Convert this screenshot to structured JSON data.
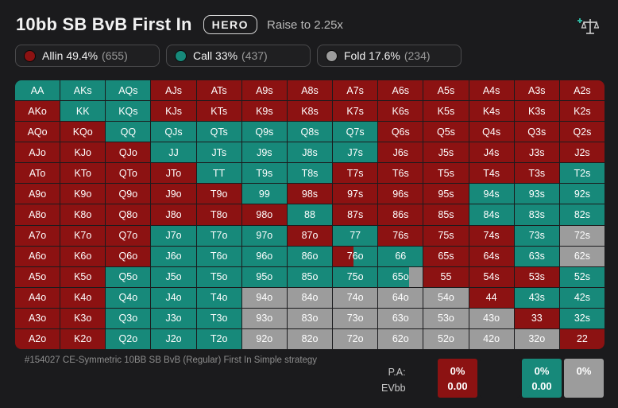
{
  "header": {
    "title": "10bb SB BvB First In",
    "badge": "HERO",
    "subtitle": "Raise to 2.25x"
  },
  "colors": {
    "allin": "#8c1212",
    "call": "#17897a",
    "fold": "#9c9c9c"
  },
  "legend": [
    {
      "key": "allin",
      "label": "Allin 49.4%",
      "count": "(655)"
    },
    {
      "key": "call",
      "label": "Call 33%",
      "count": "(437)"
    },
    {
      "key": "fold",
      "label": "Fold 17.6%",
      "count": "(234)"
    }
  ],
  "grid": [
    [
      [
        "AA",
        "C"
      ],
      [
        "AKs",
        "C"
      ],
      [
        "AQs",
        "C"
      ],
      [
        "AJs",
        "A"
      ],
      [
        "ATs",
        "A"
      ],
      [
        "A9s",
        "A"
      ],
      [
        "A8s",
        "A"
      ],
      [
        "A7s",
        "A"
      ],
      [
        "A6s",
        "A"
      ],
      [
        "A5s",
        "A"
      ],
      [
        "A4s",
        "A"
      ],
      [
        "A3s",
        "A"
      ],
      [
        "A2s",
        "A"
      ]
    ],
    [
      [
        "AKo",
        "A"
      ],
      [
        "KK",
        "C"
      ],
      [
        "KQs",
        "C"
      ],
      [
        "KJs",
        "A"
      ],
      [
        "KTs",
        "A"
      ],
      [
        "K9s",
        "A"
      ],
      [
        "K8s",
        "A"
      ],
      [
        "K7s",
        "A"
      ],
      [
        "K6s",
        "A"
      ],
      [
        "K5s",
        "A"
      ],
      [
        "K4s",
        "A"
      ],
      [
        "K3s",
        "A"
      ],
      [
        "K2s",
        "A"
      ]
    ],
    [
      [
        "AQo",
        "A"
      ],
      [
        "KQo",
        "A"
      ],
      [
        "QQ",
        "C"
      ],
      [
        "QJs",
        "C"
      ],
      [
        "QTs",
        "C"
      ],
      [
        "Q9s",
        "C"
      ],
      [
        "Q8s",
        "C"
      ],
      [
        "Q7s",
        "C"
      ],
      [
        "Q6s",
        "A"
      ],
      [
        "Q5s",
        "A"
      ],
      [
        "Q4s",
        "A"
      ],
      [
        "Q3s",
        "A"
      ],
      [
        "Q2s",
        "A"
      ]
    ],
    [
      [
        "AJo",
        "A"
      ],
      [
        "KJo",
        "A"
      ],
      [
        "QJo",
        "A"
      ],
      [
        "JJ",
        "C"
      ],
      [
        "JTs",
        "C"
      ],
      [
        "J9s",
        "C"
      ],
      [
        "J8s",
        "C"
      ],
      [
        "J7s",
        "C"
      ],
      [
        "J6s",
        "A"
      ],
      [
        "J5s",
        "A"
      ],
      [
        "J4s",
        "A"
      ],
      [
        "J3s",
        "A"
      ],
      [
        "J2s",
        "A"
      ]
    ],
    [
      [
        "ATo",
        "A"
      ],
      [
        "KTo",
        "A"
      ],
      [
        "QTo",
        "A"
      ],
      [
        "JTo",
        "A"
      ],
      [
        "TT",
        "C"
      ],
      [
        "T9s",
        "C"
      ],
      [
        "T8s",
        "C"
      ],
      [
        "T7s",
        "A"
      ],
      [
        "T6s",
        "A"
      ],
      [
        "T5s",
        "A"
      ],
      [
        "T4s",
        "A"
      ],
      [
        "T3s",
        "A"
      ],
      [
        "T2s",
        "C"
      ]
    ],
    [
      [
        "A9o",
        "A"
      ],
      [
        "K9o",
        "A"
      ],
      [
        "Q9o",
        "A"
      ],
      [
        "J9o",
        "A"
      ],
      [
        "T9o",
        "A"
      ],
      [
        "99",
        "C"
      ],
      [
        "98s",
        "A"
      ],
      [
        "97s",
        "A"
      ],
      [
        "96s",
        "A"
      ],
      [
        "95s",
        "A"
      ],
      [
        "94s",
        "C"
      ],
      [
        "93s",
        "C"
      ],
      [
        "92s",
        "C"
      ]
    ],
    [
      [
        "A8o",
        "A"
      ],
      [
        "K8o",
        "A"
      ],
      [
        "Q8o",
        "A"
      ],
      [
        "J8o",
        "A"
      ],
      [
        "T8o",
        "A"
      ],
      [
        "98o",
        "A"
      ],
      [
        "88",
        "C"
      ],
      [
        "87s",
        "A"
      ],
      [
        "86s",
        "A"
      ],
      [
        "85s",
        "A"
      ],
      [
        "84s",
        "C"
      ],
      [
        "83s",
        "C"
      ],
      [
        "82s",
        "C"
      ]
    ],
    [
      [
        "A7o",
        "A"
      ],
      [
        "K7o",
        "A"
      ],
      [
        "Q7o",
        "A"
      ],
      [
        "J7o",
        "C"
      ],
      [
        "T7o",
        "C"
      ],
      [
        "97o",
        "C"
      ],
      [
        "87o",
        "A"
      ],
      [
        "77",
        "C"
      ],
      [
        "76s",
        "A"
      ],
      [
        "75s",
        "A"
      ],
      [
        "74s",
        "A"
      ],
      [
        "73s",
        "C"
      ],
      [
        "72s",
        "F"
      ]
    ],
    [
      [
        "A6o",
        "A"
      ],
      [
        "K6o",
        "A"
      ],
      [
        "Q6o",
        "A"
      ],
      [
        "J6o",
        "C"
      ],
      [
        "T6o",
        "C"
      ],
      [
        "96o",
        "C"
      ],
      [
        "86o",
        "C"
      ],
      [
        "76o",
        "M1"
      ],
      [
        "66",
        "C"
      ],
      [
        "65s",
        "A"
      ],
      [
        "64s",
        "A"
      ],
      [
        "63s",
        "C"
      ],
      [
        "62s",
        "F"
      ]
    ],
    [
      [
        "A5o",
        "A"
      ],
      [
        "K5o",
        "A"
      ],
      [
        "Q5o",
        "C"
      ],
      [
        "J5o",
        "C"
      ],
      [
        "T5o",
        "C"
      ],
      [
        "95o",
        "C"
      ],
      [
        "85o",
        "C"
      ],
      [
        "75o",
        "C"
      ],
      [
        "65o",
        "M2"
      ],
      [
        "55",
        "A"
      ],
      [
        "54s",
        "A"
      ],
      [
        "53s",
        "A"
      ],
      [
        "52s",
        "C"
      ]
    ],
    [
      [
        "A4o",
        "A"
      ],
      [
        "K4o",
        "A"
      ],
      [
        "Q4o",
        "C"
      ],
      [
        "J4o",
        "C"
      ],
      [
        "T4o",
        "C"
      ],
      [
        "94o",
        "F"
      ],
      [
        "84o",
        "F"
      ],
      [
        "74o",
        "F"
      ],
      [
        "64o",
        "F"
      ],
      [
        "54o",
        "F"
      ],
      [
        "44",
        "A"
      ],
      [
        "43s",
        "C"
      ],
      [
        "42s",
        "C"
      ]
    ],
    [
      [
        "A3o",
        "A"
      ],
      [
        "K3o",
        "A"
      ],
      [
        "Q3o",
        "C"
      ],
      [
        "J3o",
        "C"
      ],
      [
        "T3o",
        "C"
      ],
      [
        "93o",
        "F"
      ],
      [
        "83o",
        "F"
      ],
      [
        "73o",
        "F"
      ],
      [
        "63o",
        "F"
      ],
      [
        "53o",
        "F"
      ],
      [
        "43o",
        "F"
      ],
      [
        "33",
        "A"
      ],
      [
        "32s",
        "C"
      ]
    ],
    [
      [
        "A2o",
        "A"
      ],
      [
        "K2o",
        "A"
      ],
      [
        "Q2o",
        "C"
      ],
      [
        "J2o",
        "C"
      ],
      [
        "T2o",
        "C"
      ],
      [
        "92o",
        "F"
      ],
      [
        "82o",
        "F"
      ],
      [
        "72o",
        "F"
      ],
      [
        "62o",
        "F"
      ],
      [
        "52o",
        "F"
      ],
      [
        "42o",
        "F"
      ],
      [
        "32o",
        "F"
      ],
      [
        "22",
        "A"
      ]
    ]
  ],
  "footer": {
    "description": "#154027 CE-Symmetric 10BB SB BvB (Regular) First In Simple strategy",
    "pa_label": "P.A:",
    "evbb_label": "EVbb",
    "columns": [
      {
        "key": "allin",
        "pa": "0%",
        "ev": "0.00"
      },
      {
        "key": "empty",
        "pa": "",
        "ev": ""
      },
      {
        "key": "call",
        "pa": "0%",
        "ev": "0.00"
      },
      {
        "key": "fold",
        "pa": "0%",
        "ev": ""
      }
    ]
  }
}
